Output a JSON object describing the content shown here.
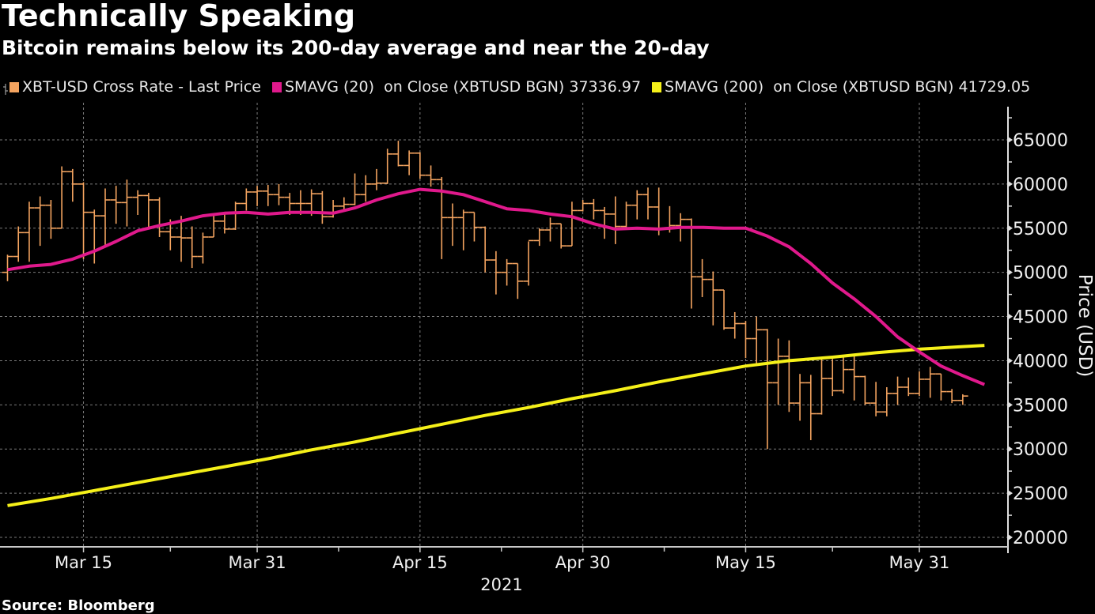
{
  "title": "Technically Speaking",
  "subtitle": "Bitcoin remains below its 200-day average and near the 20-day",
  "source": "Source: Bloomberg",
  "legend": [
    {
      "label": "XBT-USD Cross Rate - Last Price",
      "color": "#f4a460"
    },
    {
      "label": "SMAVG (20)  on Close (XBTUSD BGN) 37336.97",
      "color": "#e0198c"
    },
    {
      "label": "SMAVG (200)  on Close (XBTUSD BGN) 41729.05",
      "color": "#f5f019"
    }
  ],
  "chart_data": {
    "type": "line",
    "title": "Technically Speaking",
    "subtitle": "Bitcoin remains below its 200-day average and near the 20-day",
    "xlabel": "2021",
    "ylabel": "Price (USD)",
    "ylim": [
      19000,
      67000
    ],
    "yticks": [
      20000,
      25000,
      30000,
      35000,
      40000,
      45000,
      50000,
      55000,
      60000,
      65000
    ],
    "ytick_labels": [
      "20000",
      "25000",
      "30000",
      "35000",
      "40000",
      "45000",
      "50000",
      "55000",
      "60000",
      "65000"
    ],
    "xtick_labels": [
      "Mar 15",
      "Mar 31",
      "Apr 15",
      "Apr 30",
      "May 15",
      "May 31"
    ],
    "xtick_days": [
      7,
      23,
      38,
      53,
      68,
      84
    ],
    "x_start_day": 0,
    "x_end_day": 92,
    "grid": true,
    "legend_position": "top-left",
    "ohlc_series": {
      "name": "XBT-USD Cross Rate - Last Price",
      "color": "#f4a460",
      "start_day": 0,
      "bars": [
        [
          50000,
          52000,
          49000,
          51800
        ],
        [
          51800,
          55200,
          51200,
          54500
        ],
        [
          54500,
          58000,
          51200,
          57300
        ],
        [
          57300,
          58600,
          53000,
          57600
        ],
        [
          57600,
          58200,
          53800,
          55000
        ],
        [
          55000,
          62000,
          55000,
          61400
        ],
        [
          61400,
          61700,
          58000,
          60000
        ],
        [
          60000,
          60200,
          51500,
          56800
        ],
        [
          56800,
          57100,
          51000,
          56400
        ],
        [
          56400,
          59500,
          53000,
          58200
        ],
        [
          58200,
          59800,
          55500,
          57900
        ],
        [
          57900,
          60500,
          55200,
          58500
        ],
        [
          58500,
          59300,
          56500,
          58700
        ],
        [
          58700,
          59000,
          55000,
          58200
        ],
        [
          58200,
          58500,
          54000,
          54600
        ],
        [
          54600,
          56000,
          52500,
          54000
        ],
        [
          54000,
          56400,
          51200,
          53900
        ],
        [
          53900,
          55200,
          50500,
          51800
        ],
        [
          51800,
          54500,
          51000,
          54000
        ],
        [
          54000,
          56700,
          54000,
          55800
        ],
        [
          55800,
          56600,
          54400,
          54900
        ],
        [
          54900,
          58000,
          54800,
          57800
        ],
        [
          57800,
          59500,
          57000,
          59100
        ],
        [
          59100,
          59800,
          57500,
          59200
        ],
        [
          59200,
          59900,
          57500,
          58800
        ],
        [
          58800,
          60000,
          57600,
          58500
        ],
        [
          58500,
          59000,
          56500,
          57800
        ],
        [
          57800,
          59300,
          56500,
          57800
        ],
        [
          57800,
          59400,
          56400,
          58900
        ],
        [
          58900,
          59200,
          55500,
          56300
        ],
        [
          56300,
          58200,
          56200,
          57500
        ],
        [
          57500,
          58500,
          57000,
          57700
        ],
        [
          57700,
          61200,
          57600,
          58800
        ],
        [
          58800,
          61000,
          58000,
          60000
        ],
        [
          60000,
          61700,
          59300,
          60100
        ],
        [
          60100,
          64000,
          60000,
          63400
        ],
        [
          63400,
          64900,
          62000,
          62100
        ],
        [
          62100,
          63800,
          61000,
          63500
        ],
        [
          63500,
          63600,
          60600,
          61000
        ],
        [
          61000,
          62100,
          59700,
          60500
        ],
        [
          60500,
          60800,
          51500,
          56200
        ],
        [
          56200,
          57800,
          53000,
          56200
        ],
        [
          56200,
          57100,
          52500,
          56800
        ],
        [
          56800,
          56800,
          53500,
          55100
        ],
        [
          55100,
          55200,
          50000,
          51400
        ],
        [
          51400,
          52400,
          47500,
          50000
        ],
        [
          50000,
          51500,
          48500,
          51000
        ],
        [
          51000,
          51000,
          47000,
          49000
        ],
        [
          49000,
          53500,
          48500,
          53600
        ],
        [
          53600,
          55000,
          53000,
          54800
        ],
        [
          54800,
          56200,
          53500,
          55500
        ],
        [
          55500,
          55500,
          52700,
          53000
        ],
        [
          53000,
          58000,
          53000,
          57000
        ],
        [
          57000,
          58200,
          56900,
          57800
        ],
        [
          57800,
          58300,
          56000,
          57000
        ],
        [
          57000,
          57400,
          53800,
          56600
        ],
        [
          56600,
          58600,
          53200,
          55200
        ],
        [
          55200,
          58000,
          55000,
          57600
        ],
        [
          57600,
          59300,
          56000,
          58800
        ],
        [
          58800,
          59600,
          56000,
          57400
        ],
        [
          57400,
          59600,
          54200,
          55000
        ],
        [
          55000,
          57500,
          54500,
          55300
        ],
        [
          55300,
          56700,
          53500,
          56000
        ],
        [
          56000,
          56100,
          45900,
          49500
        ],
        [
          49500,
          51500,
          47200,
          49200
        ],
        [
          49200,
          50100,
          44000,
          48000
        ],
        [
          48000,
          48000,
          43500,
          43700
        ],
        [
          43700,
          45500,
          42500,
          44200
        ],
        [
          44200,
          44500,
          40300,
          42500
        ],
        [
          42500,
          45000,
          39600,
          43500
        ],
        [
          43500,
          43600,
          30000,
          37500
        ],
        [
          37500,
          42500,
          35000,
          40500
        ],
        [
          40500,
          42300,
          34200,
          35200
        ],
        [
          35200,
          38500,
          33200,
          37500
        ],
        [
          37500,
          38400,
          31000,
          34000
        ],
        [
          34000,
          40400,
          33900,
          38000
        ],
        [
          38000,
          40200,
          36000,
          36600
        ],
        [
          36600,
          40400,
          36300,
          39000
        ],
        [
          39000,
          40600,
          35500,
          38200
        ],
        [
          38200,
          38300,
          35000,
          35200
        ],
        [
          35200,
          37600,
          33700,
          34200
        ],
        [
          34200,
          37000,
          33700,
          36300
        ],
        [
          36300,
          38200,
          35000,
          37000
        ],
        [
          37000,
          38100,
          36000,
          36300
        ],
        [
          36300,
          38800,
          36000,
          37900
        ],
        [
          37900,
          39300,
          35800,
          38500
        ],
        [
          38500,
          38500,
          35500,
          36500
        ],
        [
          36500,
          36800,
          35200,
          35500
        ],
        [
          35500,
          36200,
          35000,
          36000
        ]
      ]
    },
    "series": [
      {
        "name": "SMAVG (20)  on Close (XBTUSD BGN)",
        "color": "#e0198c",
        "last_value": 37336.97,
        "x": [
          0,
          2,
          4,
          6,
          8,
          10,
          12,
          14,
          16,
          18,
          20,
          22,
          24,
          26,
          28,
          30,
          32,
          34,
          36,
          38,
          40,
          42,
          44,
          46,
          48,
          50,
          52,
          54,
          56,
          58,
          60,
          62,
          64,
          66,
          68,
          70,
          72,
          74,
          76,
          78,
          80,
          82,
          84,
          86,
          88,
          90
        ],
        "values": [
          50300,
          50700,
          50900,
          51500,
          52400,
          53500,
          54700,
          55300,
          55800,
          56400,
          56700,
          56800,
          56600,
          56800,
          56800,
          56700,
          57300,
          58200,
          58900,
          59400,
          59200,
          58800,
          58000,
          57200,
          57000,
          56600,
          56300,
          55500,
          54900,
          55000,
          54900,
          55100,
          55100,
          55000,
          55000,
          54100,
          52900,
          51000,
          48800,
          47000,
          45000,
          42700,
          41000,
          39400,
          38300,
          37300
        ]
      },
      {
        "name": "SMAVG (200)  on Close (XBTUSD BGN)",
        "color": "#f5f019",
        "last_value": 41729.05,
        "x": [
          0,
          4,
          8,
          12,
          16,
          20,
          24,
          28,
          32,
          36,
          40,
          44,
          48,
          52,
          56,
          60,
          64,
          68,
          72,
          76,
          80,
          84,
          88,
          90
        ],
        "values": [
          23600,
          24400,
          25300,
          26200,
          27100,
          28000,
          28900,
          29900,
          30800,
          31800,
          32800,
          33800,
          34700,
          35700,
          36600,
          37600,
          38500,
          39400,
          40000,
          40400,
          40900,
          41300,
          41600,
          41729
        ]
      }
    ]
  }
}
